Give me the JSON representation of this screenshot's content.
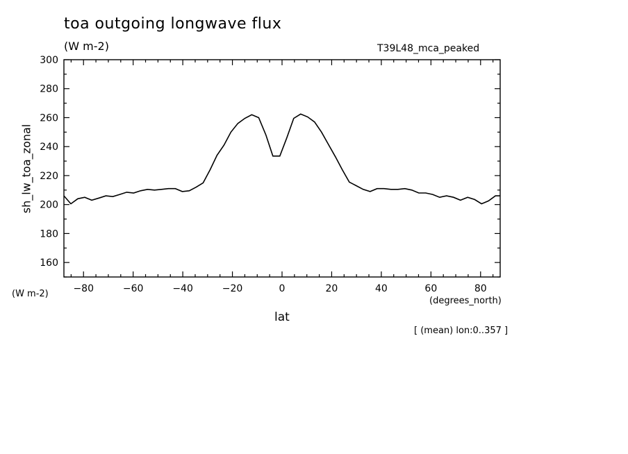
{
  "chart_data": {
    "type": "line",
    "title": "toa outgoing longwave flux",
    "units_label": "(W m-2)",
    "run_label": "T39L48_mca_peaked",
    "ylabel": "sh_lw_toa_zonal",
    "y_units_label": "(W m-2)",
    "xlabel": "lat",
    "x_units_label": "(degrees_north)",
    "note": "[ (mean) lon:0..357 ]",
    "xlim": [
      -87.9,
      87.9
    ],
    "ylim": [
      150,
      300
    ],
    "xticks": [
      -80,
      -60,
      -40,
      -20,
      0,
      20,
      40,
      60,
      80
    ],
    "xtick_labels": [
      "-80",
      "-60",
      "-40",
      "-20",
      "0",
      "20",
      "40",
      "60",
      "80"
    ],
    "yticks": [
      160,
      180,
      200,
      220,
      240,
      260,
      280,
      300
    ],
    "ytick_labels": [
      "160",
      "180",
      "200",
      "220",
      "240",
      "260",
      "280",
      "300"
    ],
    "grid": false,
    "line_color": "#000000",
    "x": [
      -87.9,
      -85.1,
      -82.3,
      -79.5,
      -76.7,
      -73.8,
      -71.0,
      -68.2,
      -65.4,
      -62.6,
      -59.8,
      -57.0,
      -54.2,
      -51.4,
      -48.6,
      -45.8,
      -43.0,
      -40.2,
      -37.4,
      -34.6,
      -31.8,
      -29.0,
      -26.2,
      -23.4,
      -20.6,
      -17.8,
      -15.0,
      -12.2,
      -9.4,
      -6.5,
      -3.7,
      -0.9,
      1.9,
      4.7,
      7.5,
      10.3,
      13.1,
      15.9,
      18.7,
      21.5,
      24.3,
      27.1,
      29.9,
      32.7,
      35.5,
      38.3,
      41.1,
      43.9,
      46.7,
      49.5,
      52.3,
      55.1,
      57.9,
      60.7,
      63.5,
      66.3,
      69.1,
      71.9,
      74.8,
      77.6,
      80.4,
      83.2,
      86.0,
      87.9
    ],
    "series": [
      {
        "values": [
          206.0,
          200.5,
          204.0,
          205.0,
          203.0,
          204.5,
          206.0,
          205.5,
          207.0,
          208.5,
          208.0,
          209.5,
          210.5,
          210.0,
          210.5,
          211.0,
          211.0,
          209.0,
          209.5,
          212.0,
          215.0,
          224.0,
          234.0,
          241.0,
          250.0,
          256.0,
          259.5,
          262.0,
          260.0,
          248.0,
          233.5,
          233.5,
          246.0,
          259.5,
          262.5,
          260.5,
          257.0,
          250.0,
          241.5,
          233.0,
          224.0,
          215.5,
          213.0,
          210.5,
          209.0,
          211.0,
          211.0,
          210.5,
          210.5,
          211.0,
          210.0,
          208.0,
          208.0,
          207.0,
          205.0,
          206.0,
          205.0,
          203.0,
          205.0,
          203.5,
          200.5,
          202.5,
          206.0,
          206.0
        ]
      }
    ]
  }
}
